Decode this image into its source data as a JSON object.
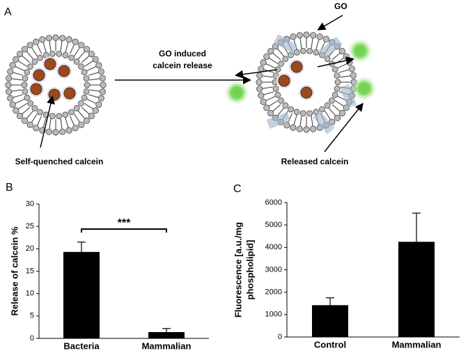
{
  "diagram": {
    "panel_label": "A",
    "go_label": "GO",
    "process_label": [
      "GO induced",
      "calcein release"
    ],
    "left_label": "Self-quenched calcein",
    "right_label": "Released calcein"
  },
  "chart_data": [
    {
      "type": "bar",
      "panel_label": "B",
      "ylabel": [
        "Release of calcein %"
      ],
      "categories": [
        "Bacteria",
        "Mammalian"
      ],
      "values": [
        19.3,
        1.4
      ],
      "errors": [
        2.2,
        0.8
      ],
      "ylim": [
        0,
        30
      ],
      "yticks": [
        0,
        5,
        10,
        15,
        20,
        25,
        30
      ],
      "color": "#000000",
      "annotation": "***"
    },
    {
      "type": "bar",
      "panel_label": "C",
      "ylabel": [
        "Fluorescence [a.u./mg",
        "phospholipid]"
      ],
      "categories": [
        "Control",
        "Mammalian"
      ],
      "values": [
        1420,
        4250
      ],
      "errors": [
        330,
        1280
      ],
      "ylim": [
        0,
        6000
      ],
      "yticks": [
        0,
        1000,
        2000,
        3000,
        4000,
        5000,
        6000
      ],
      "color": "#000000"
    }
  ]
}
